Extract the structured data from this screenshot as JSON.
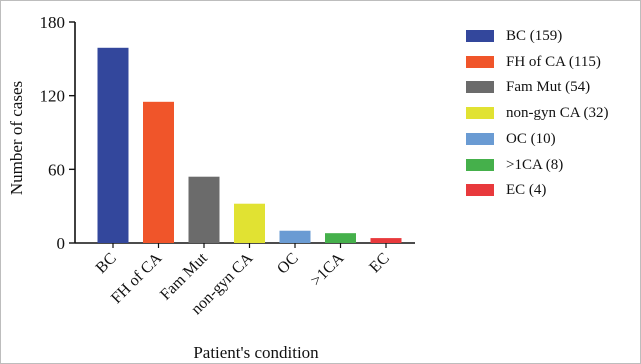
{
  "chart_data": {
    "type": "bar",
    "categories": [
      "BC",
      "FH of CA",
      "Fam Mut",
      "non-gyn CA",
      "OC",
      ">1CA",
      "EC"
    ],
    "values": [
      159,
      115,
      54,
      32,
      10,
      8,
      4
    ],
    "colors": [
      "#33479c",
      "#f0552a",
      "#6b6b6b",
      "#e1e232",
      "#6a9bd3",
      "#45b04b",
      "#e8393c"
    ],
    "xlabel": "Patient's condition",
    "ylabel": "Number of cases",
    "ylim": [
      0,
      180
    ],
    "yticks": [
      0,
      60,
      120,
      180
    ],
    "grid": false,
    "legend": {
      "placement": "right",
      "entries": [
        "BC (159)",
        "FH of CA (115)",
        "Fam Mut (54)",
        "non-gyn CA (32)",
        "OC (10)",
        ">1CA (8)",
        "EC (4)"
      ]
    }
  }
}
